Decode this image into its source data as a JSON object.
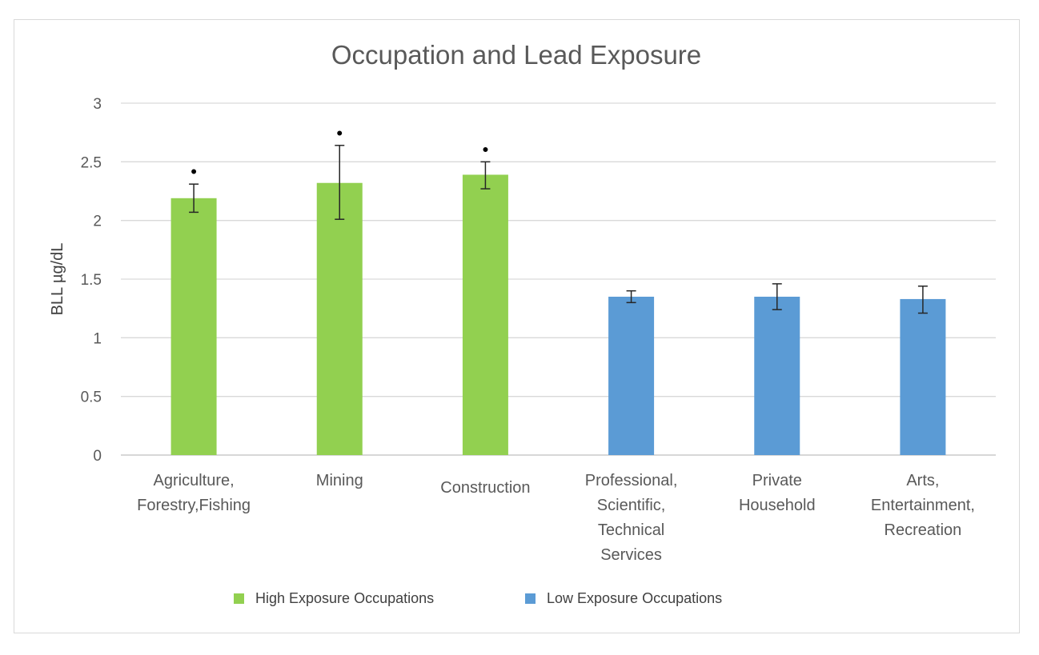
{
  "chart_data": {
    "type": "bar",
    "title": "Occupation and Lead Exposure",
    "xlabel": "",
    "ylabel": "BLL µg/dL",
    "ylim": [
      0,
      3
    ],
    "yticks": [
      "0",
      "0.5",
      "1",
      "1.5",
      "2",
      "2.5",
      "3"
    ],
    "grid": true,
    "legend_position": "bottom",
    "categories": [
      [
        "Agriculture,",
        "Forestry,Fishing"
      ],
      [
        "Mining"
      ],
      [
        "Construction"
      ],
      [
        "Professional,",
        "Scientific,",
        "Technical",
        "Services"
      ],
      [
        "Private",
        "Household"
      ],
      [
        "Arts,",
        "Entertainment,",
        "Recreation"
      ]
    ],
    "values": [
      2.19,
      2.32,
      2.39,
      1.35,
      1.35,
      1.33
    ],
    "error_low": [
      2.07,
      2.01,
      2.27,
      1.3,
      1.24,
      1.21
    ],
    "error_high": [
      2.31,
      2.64,
      2.5,
      1.4,
      1.46,
      1.44
    ],
    "significant": [
      true,
      true,
      true,
      false,
      false,
      false
    ],
    "significance_marker": "•",
    "groups": [
      "high",
      "high",
      "high",
      "low",
      "low",
      "low"
    ],
    "series": [
      {
        "name": "High Exposure Occupations",
        "key": "high",
        "color": "#92d050"
      },
      {
        "name": "Low Exposure Occupations",
        "key": "low",
        "color": "#5b9bd5"
      }
    ]
  }
}
